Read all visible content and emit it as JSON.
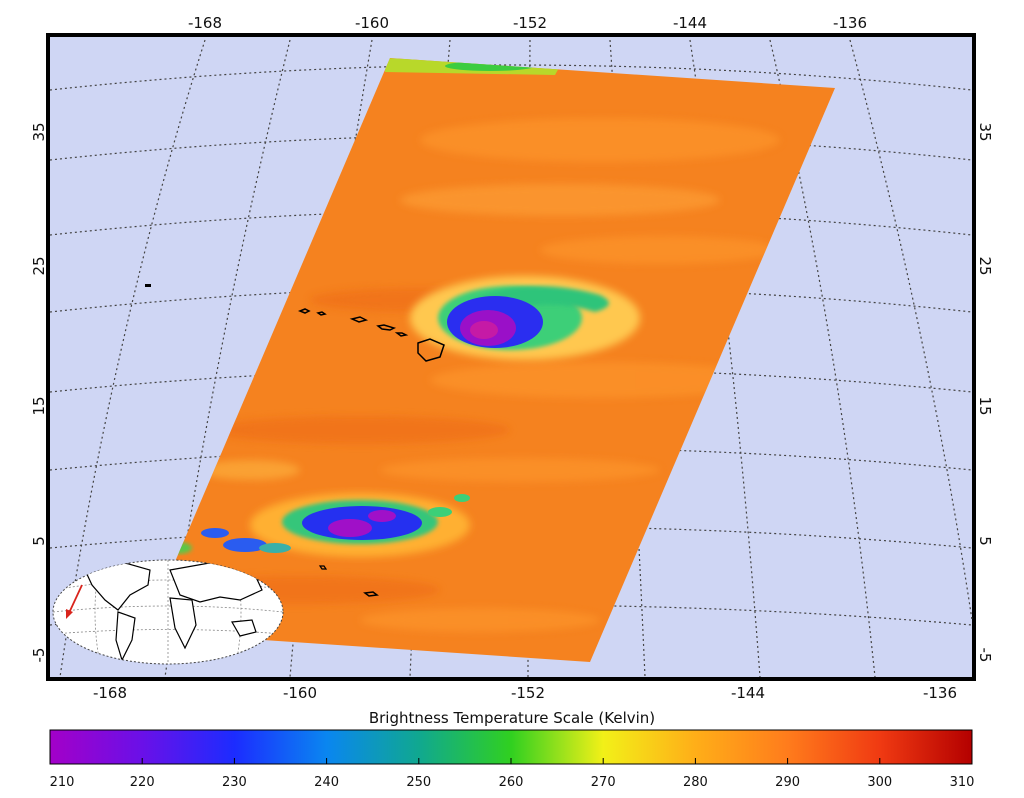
{
  "map": {
    "top_lon_labels": [
      "-168",
      "-160",
      "-152",
      "-144",
      "-136"
    ],
    "bottom_lon_labels": [
      "-168",
      "-160",
      "-152",
      "-144",
      "-136"
    ],
    "left_lat_labels": [
      "35",
      "25",
      "15",
      "5",
      "-5"
    ],
    "right_lat_labels": [
      "35",
      "25",
      "15",
      "5",
      "-5"
    ],
    "colors": {
      "ocean_background": "#cfd6f4",
      "swath_base": "#f5821f",
      "graticule": "#444444",
      "coastline": "#000000",
      "locator_arrow": "#d9241c"
    }
  },
  "colorbar": {
    "title": "Brightness Temperature Scale (Kelvin)",
    "min": 210,
    "max": 310,
    "tick_labels": [
      "210",
      "220",
      "230",
      "240",
      "250",
      "260",
      "270",
      "280",
      "290",
      "300",
      "310"
    ],
    "stops": [
      {
        "value": 210,
        "color": "#a300c8"
      },
      {
        "value": 220,
        "color": "#6a10e8"
      },
      {
        "value": 230,
        "color": "#1c2cff"
      },
      {
        "value": 240,
        "color": "#0a86f0"
      },
      {
        "value": 250,
        "color": "#10a890"
      },
      {
        "value": 260,
        "color": "#30d020"
      },
      {
        "value": 270,
        "color": "#f2f018"
      },
      {
        "value": 280,
        "color": "#ffae18"
      },
      {
        "value": 290,
        "color": "#ff7c1c"
      },
      {
        "value": 300,
        "color": "#f03a12"
      },
      {
        "value": 310,
        "color": "#b40000"
      }
    ]
  }
}
